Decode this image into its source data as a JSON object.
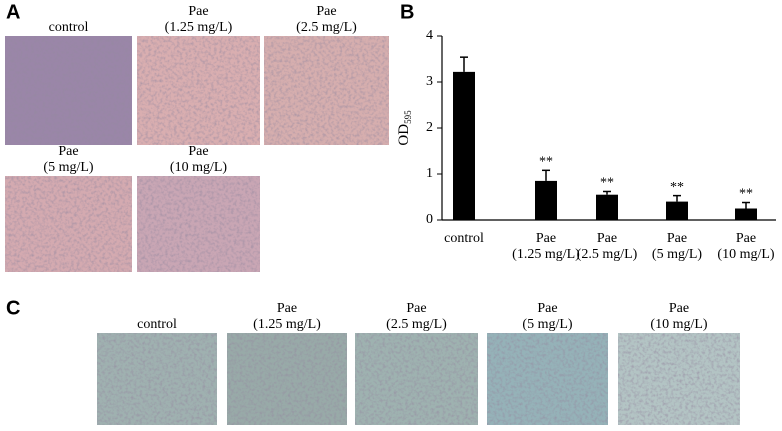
{
  "panel_a": {
    "label": "A",
    "images": [
      {
        "caption": [
          "control"
        ]
      },
      {
        "caption": [
          "Pae",
          "(1.25 mg/L)"
        ]
      },
      {
        "caption": [
          "Pae",
          "(2.5 mg/L)"
        ]
      },
      {
        "caption": [
          "Pae",
          "(5 mg/L)"
        ]
      },
      {
        "caption": [
          "Pae",
          "(10 mg/L)"
        ]
      }
    ]
  },
  "chart_data": {
    "type": "bar",
    "label": "B",
    "ylabel": "OD",
    "ylabel_sub": "595",
    "categories": [
      [
        "control"
      ],
      [
        "Pae",
        "(1.25 mg/L)"
      ],
      [
        "Pae",
        "(2.5 mg/L)"
      ],
      [
        "Pae",
        "(5 mg/L)"
      ],
      [
        "Pae",
        "(10 mg/L)"
      ]
    ],
    "values": [
      3.22,
      0.85,
      0.55,
      0.4,
      0.25
    ],
    "errors": [
      0.32,
      0.23,
      0.07,
      0.13,
      0.13
    ],
    "significance": [
      null,
      "**",
      "**",
      "**",
      "**"
    ],
    "color": "#000000",
    "ylim": [
      0,
      4
    ],
    "yticks": [
      0,
      1,
      2,
      3,
      4
    ],
    "grid": false
  },
  "panel_c": {
    "label": "C",
    "images": [
      {
        "caption": [
          "control"
        ]
      },
      {
        "caption": [
          "Pae",
          "(1.25 mg/L)"
        ]
      },
      {
        "caption": [
          "Pae",
          "(2.5 mg/L)"
        ]
      },
      {
        "caption": [
          "Pae",
          "(5 mg/L)"
        ]
      },
      {
        "caption": [
          "Pae",
          "(10 mg/L)"
        ]
      }
    ]
  }
}
